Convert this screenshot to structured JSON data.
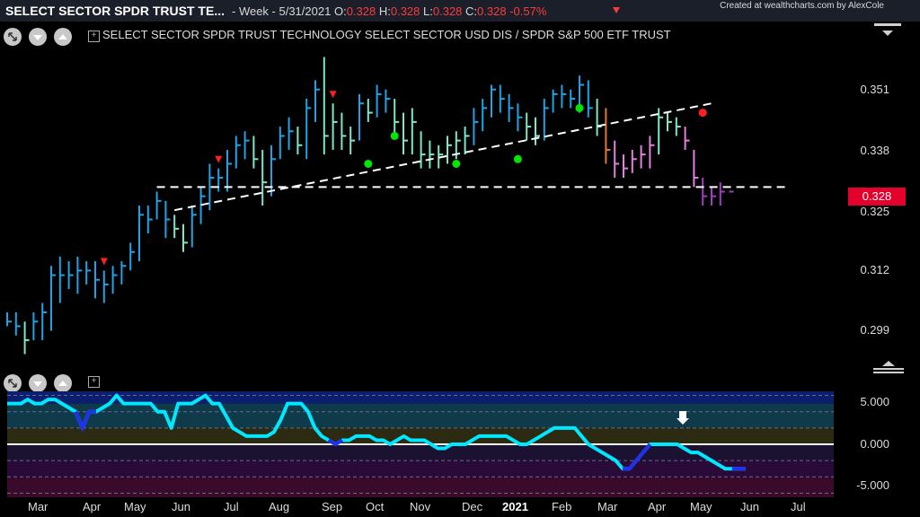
{
  "header": {
    "symbol_title": "SELECT SECTOR SPDR TRUST TE...",
    "period": "- Week - 5/31/2021",
    "o_label": "O:",
    "o_val": "0.328",
    "h_label": "H:",
    "h_val": "0.328",
    "l_label": "L:",
    "l_val": "0.328",
    "c_label": "C:",
    "c_val": "0.328",
    "change": "-0.57%",
    "credit": "Created at wealthcharts.com by AlexCole"
  },
  "chart_title": "SELECT SECTOR SPDR TRUST TECHNOLOGY SELECT SECTOR USD DIS / SPDR S&P 500 ETF TRUST",
  "last_price": "0.328",
  "colors": {
    "up_strong": "#1ea3e6",
    "up_mild": "#7fe6c8",
    "warn": "#e07b28",
    "down": "#e57fe0",
    "down_strong": "#a23cc0",
    "sell_dot": "#ff2020",
    "buy_dot": "#00e600",
    "osc_line": "#00e8ff",
    "osc_dark": "#2030f0"
  },
  "chart_data": [
    {
      "type": "ohlc",
      "ylim": [
        0.29,
        0.36
      ],
      "yticks": [
        "0.351",
        "0.338",
        "0.325",
        "0.312",
        "0.299"
      ],
      "xticks": [
        "Mar",
        "Apr",
        "May",
        "Jun",
        "Jul",
        "Aug",
        "Sep",
        "Oct",
        "Nov",
        "Dec",
        "2021",
        "Feb",
        "Mar",
        "Apr",
        "May",
        "Jun",
        "Jul"
      ],
      "support_level": 0.329,
      "bars": [
        {
          "h": 0.302,
          "l": 0.299,
          "c": 0.3,
          "color": "up_strong"
        },
        {
          "h": 0.302,
          "l": 0.297,
          "c": 0.299,
          "color": "up_strong"
        },
        {
          "h": 0.3,
          "l": 0.293,
          "c": 0.296,
          "color": "up_mild"
        },
        {
          "h": 0.302,
          "l": 0.296,
          "c": 0.3,
          "color": "up_strong"
        },
        {
          "h": 0.304,
          "l": 0.296,
          "c": 0.302,
          "color": "up_strong"
        },
        {
          "h": 0.312,
          "l": 0.298,
          "c": 0.31,
          "color": "up_strong"
        },
        {
          "h": 0.314,
          "l": 0.304,
          "c": 0.31,
          "color": "up_strong"
        },
        {
          "h": 0.313,
          "l": 0.307,
          "c": 0.31,
          "color": "up_strong"
        },
        {
          "h": 0.314,
          "l": 0.306,
          "c": 0.311,
          "color": "up_strong"
        },
        {
          "h": 0.313,
          "l": 0.308,
          "c": 0.311,
          "color": "up_strong"
        },
        {
          "h": 0.313,
          "l": 0.305,
          "c": 0.309,
          "color": "up_strong"
        },
        {
          "h": 0.311,
          "l": 0.304,
          "c": 0.308,
          "color": "up_strong"
        },
        {
          "h": 0.312,
          "l": 0.306,
          "c": 0.31,
          "color": "up_strong"
        },
        {
          "h": 0.313,
          "l": 0.308,
          "c": 0.312,
          "color": "up_strong"
        },
        {
          "h": 0.317,
          "l": 0.311,
          "c": 0.315,
          "color": "up_strong"
        },
        {
          "h": 0.325,
          "l": 0.313,
          "c": 0.323,
          "color": "up_strong"
        },
        {
          "h": 0.325,
          "l": 0.319,
          "c": 0.322,
          "color": "up_strong"
        },
        {
          "h": 0.328,
          "l": 0.322,
          "c": 0.326,
          "color": "up_strong"
        },
        {
          "h": 0.326,
          "l": 0.318,
          "c": 0.322,
          "color": "up_strong"
        },
        {
          "h": 0.323,
          "l": 0.318,
          "c": 0.32,
          "color": "up_mild"
        },
        {
          "h": 0.321,
          "l": 0.315,
          "c": 0.317,
          "color": "up_mild"
        },
        {
          "h": 0.325,
          "l": 0.316,
          "c": 0.323,
          "color": "up_strong"
        },
        {
          "h": 0.329,
          "l": 0.321,
          "c": 0.327,
          "color": "up_strong"
        },
        {
          "h": 0.334,
          "l": 0.324,
          "c": 0.331,
          "color": "up_strong"
        },
        {
          "h": 0.333,
          "l": 0.328,
          "c": 0.331,
          "color": "up_strong"
        },
        {
          "h": 0.337,
          "l": 0.328,
          "c": 0.334,
          "color": "up_strong"
        },
        {
          "h": 0.34,
          "l": 0.333,
          "c": 0.338,
          "color": "up_strong"
        },
        {
          "h": 0.341,
          "l": 0.335,
          "c": 0.339,
          "color": "up_strong"
        },
        {
          "h": 0.34,
          "l": 0.333,
          "c": 0.335,
          "color": "up_mild"
        },
        {
          "h": 0.337,
          "l": 0.325,
          "c": 0.33,
          "color": "up_mild"
        },
        {
          "h": 0.338,
          "l": 0.327,
          "c": 0.335,
          "color": "up_strong"
        },
        {
          "h": 0.342,
          "l": 0.335,
          "c": 0.34,
          "color": "up_strong"
        },
        {
          "h": 0.344,
          "l": 0.337,
          "c": 0.341,
          "color": "up_strong"
        },
        {
          "h": 0.342,
          "l": 0.336,
          "c": 0.338,
          "color": "up_mild"
        },
        {
          "h": 0.348,
          "l": 0.335,
          "c": 0.346,
          "color": "up_strong"
        },
        {
          "h": 0.352,
          "l": 0.343,
          "c": 0.35,
          "color": "up_strong"
        },
        {
          "h": 0.357,
          "l": 0.336,
          "c": 0.34,
          "color": "up_mild"
        },
        {
          "h": 0.347,
          "l": 0.337,
          "c": 0.343,
          "color": "up_mild"
        },
        {
          "h": 0.345,
          "l": 0.337,
          "c": 0.34,
          "color": "up_mild"
        },
        {
          "h": 0.342,
          "l": 0.336,
          "c": 0.339,
          "color": "up_mild"
        },
        {
          "h": 0.349,
          "l": 0.339,
          "c": 0.347,
          "color": "up_strong"
        },
        {
          "h": 0.348,
          "l": 0.343,
          "c": 0.345,
          "color": "up_mild"
        },
        {
          "h": 0.351,
          "l": 0.344,
          "c": 0.349,
          "color": "up_strong"
        },
        {
          "h": 0.35,
          "l": 0.345,
          "c": 0.348,
          "color": "up_strong"
        },
        {
          "h": 0.348,
          "l": 0.34,
          "c": 0.343,
          "color": "up_mild"
        },
        {
          "h": 0.345,
          "l": 0.336,
          "c": 0.339,
          "color": "up_mild"
        },
        {
          "h": 0.346,
          "l": 0.336,
          "c": 0.343,
          "color": "up_mild"
        },
        {
          "h": 0.341,
          "l": 0.333,
          "c": 0.336,
          "color": "up_mild"
        },
        {
          "h": 0.339,
          "l": 0.333,
          "c": 0.336,
          "color": "up_mild"
        },
        {
          "h": 0.338,
          "l": 0.333,
          "c": 0.336,
          "color": "up_mild"
        },
        {
          "h": 0.34,
          "l": 0.334,
          "c": 0.338,
          "color": "up_mild"
        },
        {
          "h": 0.341,
          "l": 0.335,
          "c": 0.339,
          "color": "up_mild"
        },
        {
          "h": 0.342,
          "l": 0.336,
          "c": 0.34,
          "color": "up_mild"
        },
        {
          "h": 0.346,
          "l": 0.338,
          "c": 0.343,
          "color": "up_strong"
        },
        {
          "h": 0.348,
          "l": 0.341,
          "c": 0.346,
          "color": "up_strong"
        },
        {
          "h": 0.351,
          "l": 0.344,
          "c": 0.35,
          "color": "up_strong"
        },
        {
          "h": 0.351,
          "l": 0.345,
          "c": 0.348,
          "color": "up_strong"
        },
        {
          "h": 0.349,
          "l": 0.343,
          "c": 0.346,
          "color": "up_strong"
        },
        {
          "h": 0.347,
          "l": 0.341,
          "c": 0.344,
          "color": "up_strong"
        },
        {
          "h": 0.345,
          "l": 0.339,
          "c": 0.342,
          "color": "up_mild"
        },
        {
          "h": 0.344,
          "l": 0.338,
          "c": 0.34,
          "color": "up_mild"
        },
        {
          "h": 0.348,
          "l": 0.339,
          "c": 0.346,
          "color": "up_strong"
        },
        {
          "h": 0.35,
          "l": 0.345,
          "c": 0.349,
          "color": "up_strong"
        },
        {
          "h": 0.351,
          "l": 0.346,
          "c": 0.349,
          "color": "up_strong"
        },
        {
          "h": 0.35,
          "l": 0.346,
          "c": 0.348,
          "color": "up_strong"
        },
        {
          "h": 0.353,
          "l": 0.345,
          "c": 0.351,
          "color": "up_strong"
        },
        {
          "h": 0.352,
          "l": 0.344,
          "c": 0.346,
          "color": "up_strong"
        },
        {
          "h": 0.348,
          "l": 0.34,
          "c": 0.342,
          "color": "up_mild"
        },
        {
          "h": 0.346,
          "l": 0.334,
          "c": 0.337,
          "color": "warn"
        },
        {
          "h": 0.339,
          "l": 0.331,
          "c": 0.334,
          "color": "down"
        },
        {
          "h": 0.336,
          "l": 0.331,
          "c": 0.333,
          "color": "down"
        },
        {
          "h": 0.337,
          "l": 0.332,
          "c": 0.335,
          "color": "down"
        },
        {
          "h": 0.338,
          "l": 0.333,
          "c": 0.336,
          "color": "down"
        },
        {
          "h": 0.34,
          "l": 0.333,
          "c": 0.338,
          "color": "down"
        },
        {
          "h": 0.346,
          "l": 0.336,
          "c": 0.344,
          "color": "up_mild"
        },
        {
          "h": 0.345,
          "l": 0.341,
          "c": 0.343,
          "color": "up_mild"
        },
        {
          "h": 0.344,
          "l": 0.34,
          "c": 0.342,
          "color": "up_mild"
        },
        {
          "h": 0.342,
          "l": 0.337,
          "c": 0.339,
          "color": "down"
        },
        {
          "h": 0.337,
          "l": 0.329,
          "c": 0.331,
          "color": "down"
        },
        {
          "h": 0.331,
          "l": 0.325,
          "c": 0.327,
          "color": "down_strong"
        },
        {
          "h": 0.329,
          "l": 0.325,
          "c": 0.327,
          "color": "down_strong"
        },
        {
          "h": 0.33,
          "l": 0.325,
          "c": 0.328,
          "color": "down_strong"
        },
        {
          "h": 0.328,
          "l": 0.328,
          "c": 0.328,
          "color": "down_strong"
        }
      ],
      "sell_signals": [
        {
          "bar": 11
        },
        {
          "bar": 24
        },
        {
          "bar": 37
        }
      ],
      "buy_dots": [
        {
          "bar": 44,
          "y": 0.34
        },
        {
          "bar": 41,
          "y": 0.334
        },
        {
          "bar": 51,
          "y": 0.334
        },
        {
          "bar": 58,
          "y": 0.335
        },
        {
          "bar": 65,
          "y": 0.346
        }
      ],
      "sell_dots": [
        {
          "bar": 79,
          "y": 0.345
        }
      ]
    },
    {
      "type": "line",
      "ylim": [
        -6.5,
        6.5
      ],
      "yticks": [
        "5.000",
        "0.000",
        "-5.000"
      ],
      "values": [
        5,
        5,
        5,
        5.5,
        5,
        5,
        5.5,
        5.5,
        5,
        4.5,
        4,
        2,
        4,
        4,
        4.5,
        5,
        6,
        5,
        5,
        5,
        5,
        5,
        4,
        4,
        2,
        5,
        5,
        5,
        5.5,
        6,
        5,
        5,
        3.5,
        2,
        1.5,
        1,
        1,
        1,
        1,
        1.5,
        3,
        5,
        5,
        5,
        4,
        2,
        1,
        0.5,
        0,
        0.5,
        0.5,
        1,
        1,
        1,
        0.5,
        0.5,
        0,
        0.5,
        1,
        0.5,
        0.5,
        0.5,
        0,
        -0.5,
        -0.5,
        0,
        0,
        0,
        0.5,
        1,
        1,
        1,
        1,
        1,
        0.5,
        0,
        0,
        0.5,
        1,
        1.5,
        2,
        2,
        2,
        2,
        1,
        0,
        -0.5,
        -1,
        -1.5,
        -2,
        -3,
        -3,
        -2,
        -1,
        0,
        0,
        0,
        0,
        0,
        -0.5,
        -1,
        -1,
        -1.5,
        -2,
        -2.5,
        -3,
        -3,
        -3,
        -3
      ]
    }
  ]
}
